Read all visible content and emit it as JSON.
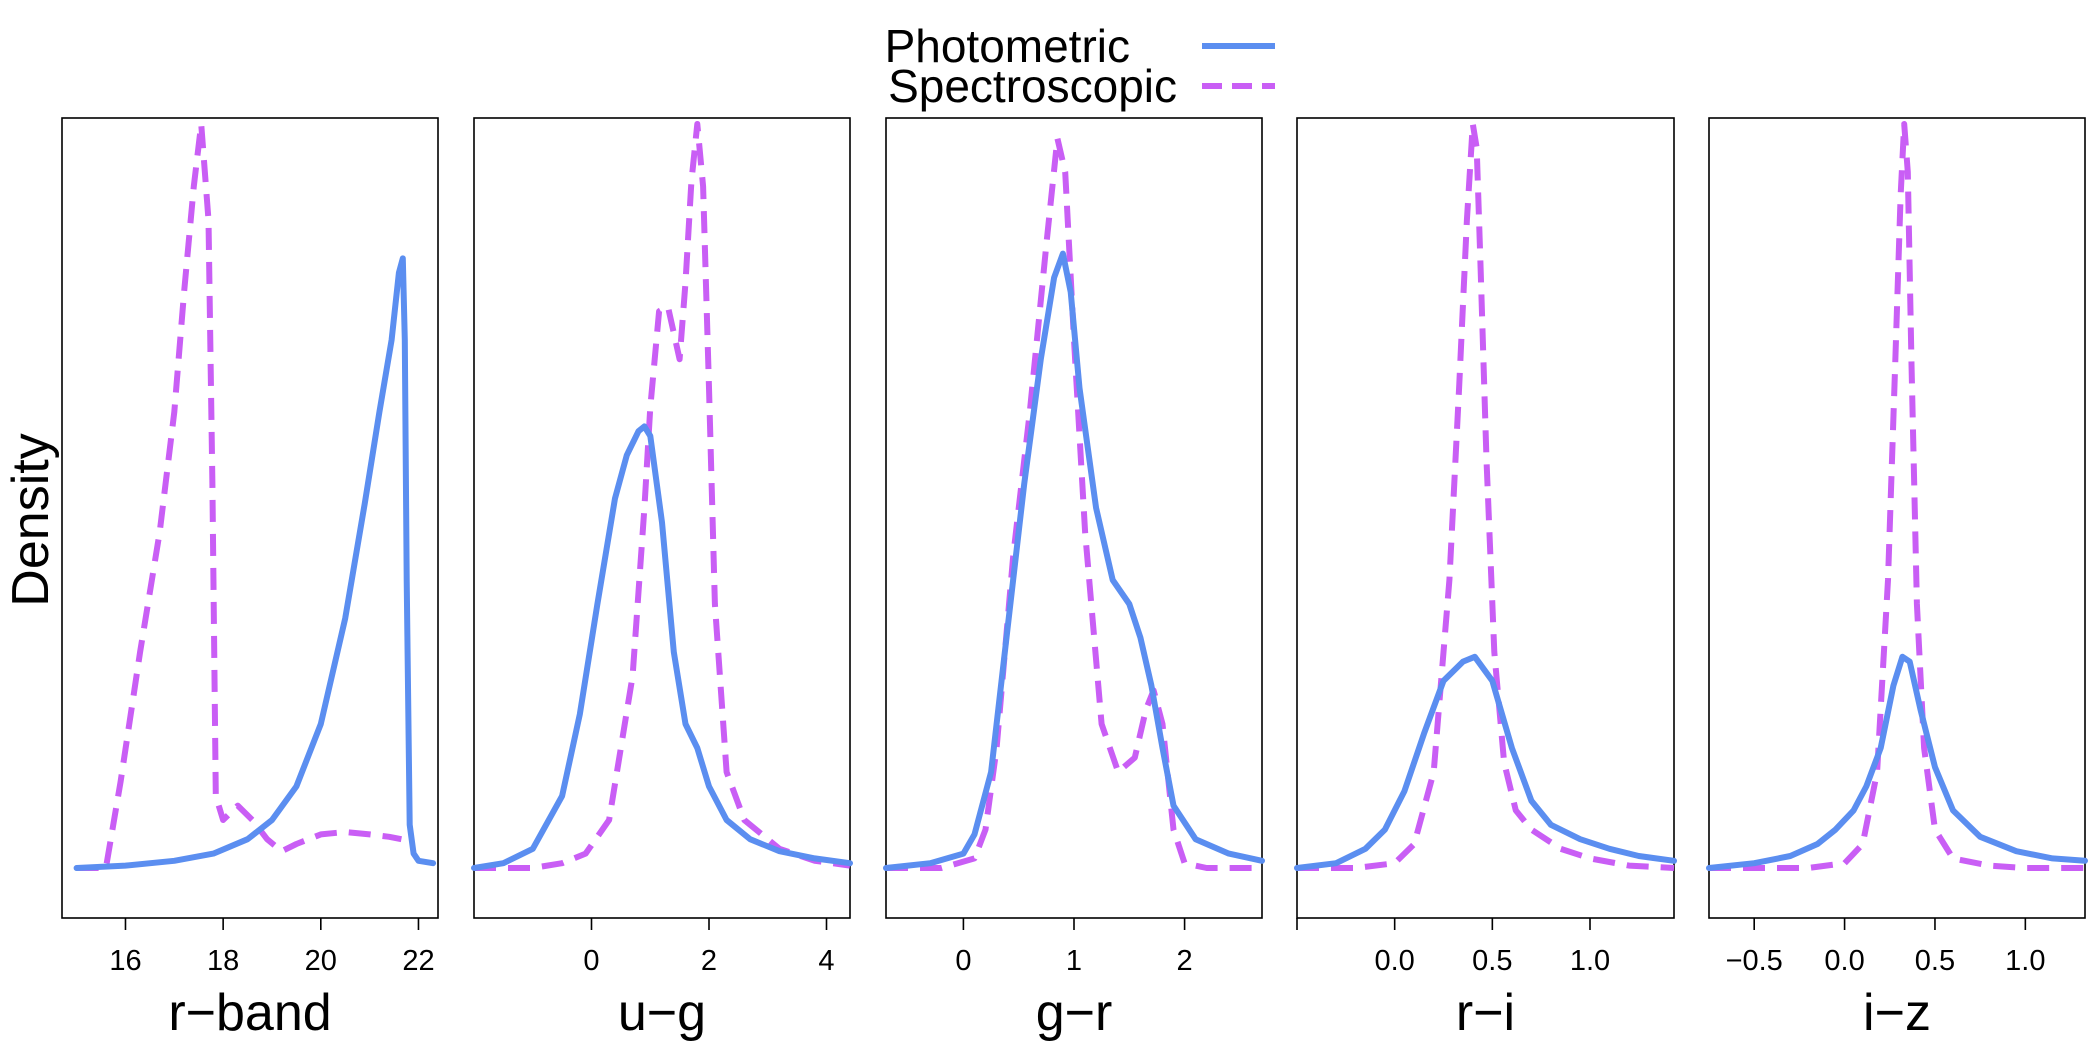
{
  "chart_data": {
    "type": "line",
    "ylabel": "Density",
    "legend": {
      "placement": "top-center",
      "entries": [
        {
          "name": "Photometric",
          "color": "#5b8ef0",
          "style": "solid"
        },
        {
          "name": "Spectroscopic",
          "color": "#c95ef5",
          "style": "dashed"
        }
      ]
    },
    "panels": [
      {
        "xlabel": "r−band",
        "xlim": [
          14.7,
          22.4
        ],
        "ticks": [
          16,
          18,
          20,
          22
        ],
        "tick_labels": [
          "16",
          "18",
          "20",
          "22"
        ],
        "series": [
          {
            "name": "Photometric",
            "x": [
              15.0,
              16.0,
              17.0,
              17.8,
              18.5,
              19.0,
              19.5,
              20.0,
              20.5,
              20.9,
              21.2,
              21.45,
              21.6,
              21.68,
              21.72,
              21.76,
              21.82,
              21.9,
              22.0,
              22.3
            ],
            "y": [
              0.0,
              0.005,
              0.015,
              0.03,
              0.06,
              0.1,
              0.17,
              0.3,
              0.52,
              0.76,
              0.95,
              1.1,
              1.24,
              1.27,
              1.1,
              0.6,
              0.09,
              0.03,
              0.015,
              0.01
            ]
          },
          {
            "name": "Spectroscopic",
            "x": [
              15.0,
              15.6,
              15.9,
              16.3,
              16.7,
              17.0,
              17.2,
              17.4,
              17.55,
              17.7,
              17.78,
              17.85,
              18.0,
              18.3,
              18.6,
              18.9,
              19.2,
              19.5,
              20.0,
              20.5,
              21.0,
              21.4,
              21.65
            ],
            "y": [
              0.0,
              0.0,
              0.18,
              0.45,
              0.7,
              0.95,
              1.2,
              1.42,
              1.55,
              1.35,
              0.8,
              0.15,
              0.1,
              0.13,
              0.1,
              0.06,
              0.035,
              0.05,
              0.07,
              0.075,
              0.07,
              0.065,
              0.06
            ]
          }
        ]
      },
      {
        "xlabel": "u−g",
        "xlim": [
          -2.0,
          4.4
        ],
        "ticks": [
          0,
          2,
          4
        ],
        "tick_labels": [
          "0",
          "2",
          "4"
        ],
        "series": [
          {
            "name": "Photometric",
            "x": [
              -2.0,
              -1.5,
              -1.0,
              -0.5,
              -0.2,
              0.1,
              0.4,
              0.6,
              0.8,
              0.9,
              1.0,
              1.2,
              1.4,
              1.6,
              1.8,
              2.0,
              2.3,
              2.7,
              3.2,
              3.8,
              4.4
            ],
            "y": [
              0.0,
              0.01,
              0.04,
              0.15,
              0.32,
              0.55,
              0.77,
              0.86,
              0.91,
              0.92,
              0.9,
              0.72,
              0.45,
              0.3,
              0.25,
              0.17,
              0.1,
              0.06,
              0.035,
              0.02,
              0.01
            ]
          },
          {
            "name": "Spectroscopic",
            "x": [
              -2.0,
              -1.0,
              -0.5,
              -0.1,
              0.3,
              0.7,
              0.9,
              1.0,
              1.15,
              1.3,
              1.5,
              1.6,
              1.7,
              1.8,
              1.9,
              2.0,
              2.1,
              2.3,
              2.6,
              3.2,
              3.8,
              4.4
            ],
            "y": [
              0.0,
              0.0,
              0.01,
              0.03,
              0.1,
              0.4,
              0.75,
              0.96,
              1.16,
              1.17,
              1.06,
              1.22,
              1.43,
              1.55,
              1.42,
              1.0,
              0.55,
              0.2,
              0.1,
              0.04,
              0.015,
              0.005
            ]
          }
        ]
      },
      {
        "xlabel": "g−r",
        "xlim": [
          -0.7,
          2.7
        ],
        "ticks": [
          0,
          1,
          2
        ],
        "tick_labels": [
          "0",
          "1",
          "2"
        ],
        "series": [
          {
            "name": "Photometric",
            "x": [
              -0.7,
              -0.3,
              0.0,
              0.1,
              0.25,
              0.4,
              0.55,
              0.7,
              0.82,
              0.9,
              0.97,
              1.05,
              1.2,
              1.35,
              1.5,
              1.6,
              1.7,
              1.8,
              1.9,
              2.1,
              2.4,
              2.7
            ],
            "y": [
              0.0,
              0.01,
              0.03,
              0.07,
              0.2,
              0.5,
              0.8,
              1.06,
              1.23,
              1.28,
              1.2,
              1.0,
              0.75,
              0.6,
              0.55,
              0.48,
              0.38,
              0.25,
              0.13,
              0.06,
              0.03,
              0.015
            ]
          },
          {
            "name": "Spectroscopic",
            "x": [
              -0.7,
              -0.2,
              0.1,
              0.2,
              0.3,
              0.45,
              0.6,
              0.75,
              0.85,
              0.92,
              1.0,
              1.1,
              1.25,
              1.4,
              1.55,
              1.65,
              1.72,
              1.8,
              1.9,
              2.0,
              2.2,
              2.7
            ],
            "y": [
              0.0,
              0.0,
              0.02,
              0.08,
              0.25,
              0.65,
              0.95,
              1.3,
              1.52,
              1.45,
              1.1,
              0.7,
              0.3,
              0.2,
              0.23,
              0.33,
              0.37,
              0.3,
              0.08,
              0.01,
              0.0,
              0.0
            ]
          }
        ]
      },
      {
        "xlabel": "r−i",
        "xlim": [
          -0.5,
          1.43
        ],
        "ticks": [
          -0.5,
          0.0,
          0.5,
          1.0
        ],
        "tick_labels": [
          "",
          "0.0",
          "0.5",
          "1.0"
        ],
        "series": [
          {
            "name": "Photometric",
            "x": [
              -0.5,
              -0.3,
              -0.15,
              -0.05,
              0.05,
              0.15,
              0.25,
              0.35,
              0.41,
              0.5,
              0.6,
              0.7,
              0.8,
              0.95,
              1.1,
              1.25,
              1.43
            ],
            "y": [
              0.0,
              0.01,
              0.04,
              0.08,
              0.16,
              0.28,
              0.39,
              0.43,
              0.44,
              0.39,
              0.25,
              0.14,
              0.09,
              0.06,
              0.04,
              0.025,
              0.015
            ]
          },
          {
            "name": "Spectroscopic",
            "x": [
              -0.5,
              -0.2,
              0.0,
              0.1,
              0.2,
              0.28,
              0.33,
              0.37,
              0.4,
              0.42,
              0.44,
              0.47,
              0.51,
              0.56,
              0.62,
              0.7,
              0.85,
              1.0,
              1.2,
              1.43
            ],
            "y": [
              0.0,
              0.0,
              0.01,
              0.05,
              0.2,
              0.6,
              1.0,
              1.35,
              1.55,
              1.5,
              1.25,
              0.85,
              0.45,
              0.22,
              0.12,
              0.08,
              0.04,
              0.02,
              0.005,
              0.0
            ]
          }
        ]
      },
      {
        "xlabel": "i−z",
        "xlim": [
          -0.75,
          1.33
        ],
        "ticks": [
          -0.5,
          0.0,
          0.5,
          1.0
        ],
        "tick_labels": [
          "−0.5",
          "0.0",
          "0.5",
          "1.0"
        ],
        "series": [
          {
            "name": "Photometric",
            "x": [
              -0.75,
              -0.5,
              -0.3,
              -0.15,
              -0.05,
              0.05,
              0.12,
              0.2,
              0.27,
              0.32,
              0.36,
              0.42,
              0.5,
              0.6,
              0.75,
              0.95,
              1.15,
              1.33
            ],
            "y": [
              0.0,
              0.01,
              0.025,
              0.05,
              0.08,
              0.12,
              0.17,
              0.25,
              0.38,
              0.44,
              0.43,
              0.33,
              0.21,
              0.12,
              0.065,
              0.035,
              0.02,
              0.015
            ]
          },
          {
            "name": "Spectroscopic",
            "x": [
              -0.75,
              -0.2,
              0.0,
              0.1,
              0.18,
              0.24,
              0.28,
              0.31,
              0.33,
              0.35,
              0.37,
              0.4,
              0.44,
              0.5,
              0.6,
              0.8,
              1.0,
              1.33
            ],
            "y": [
              0.0,
              0.0,
              0.01,
              0.05,
              0.2,
              0.6,
              1.05,
              1.4,
              1.55,
              1.45,
              1.05,
              0.55,
              0.25,
              0.08,
              0.02,
              0.005,
              0.0,
              0.0
            ]
          }
        ]
      }
    ]
  }
}
